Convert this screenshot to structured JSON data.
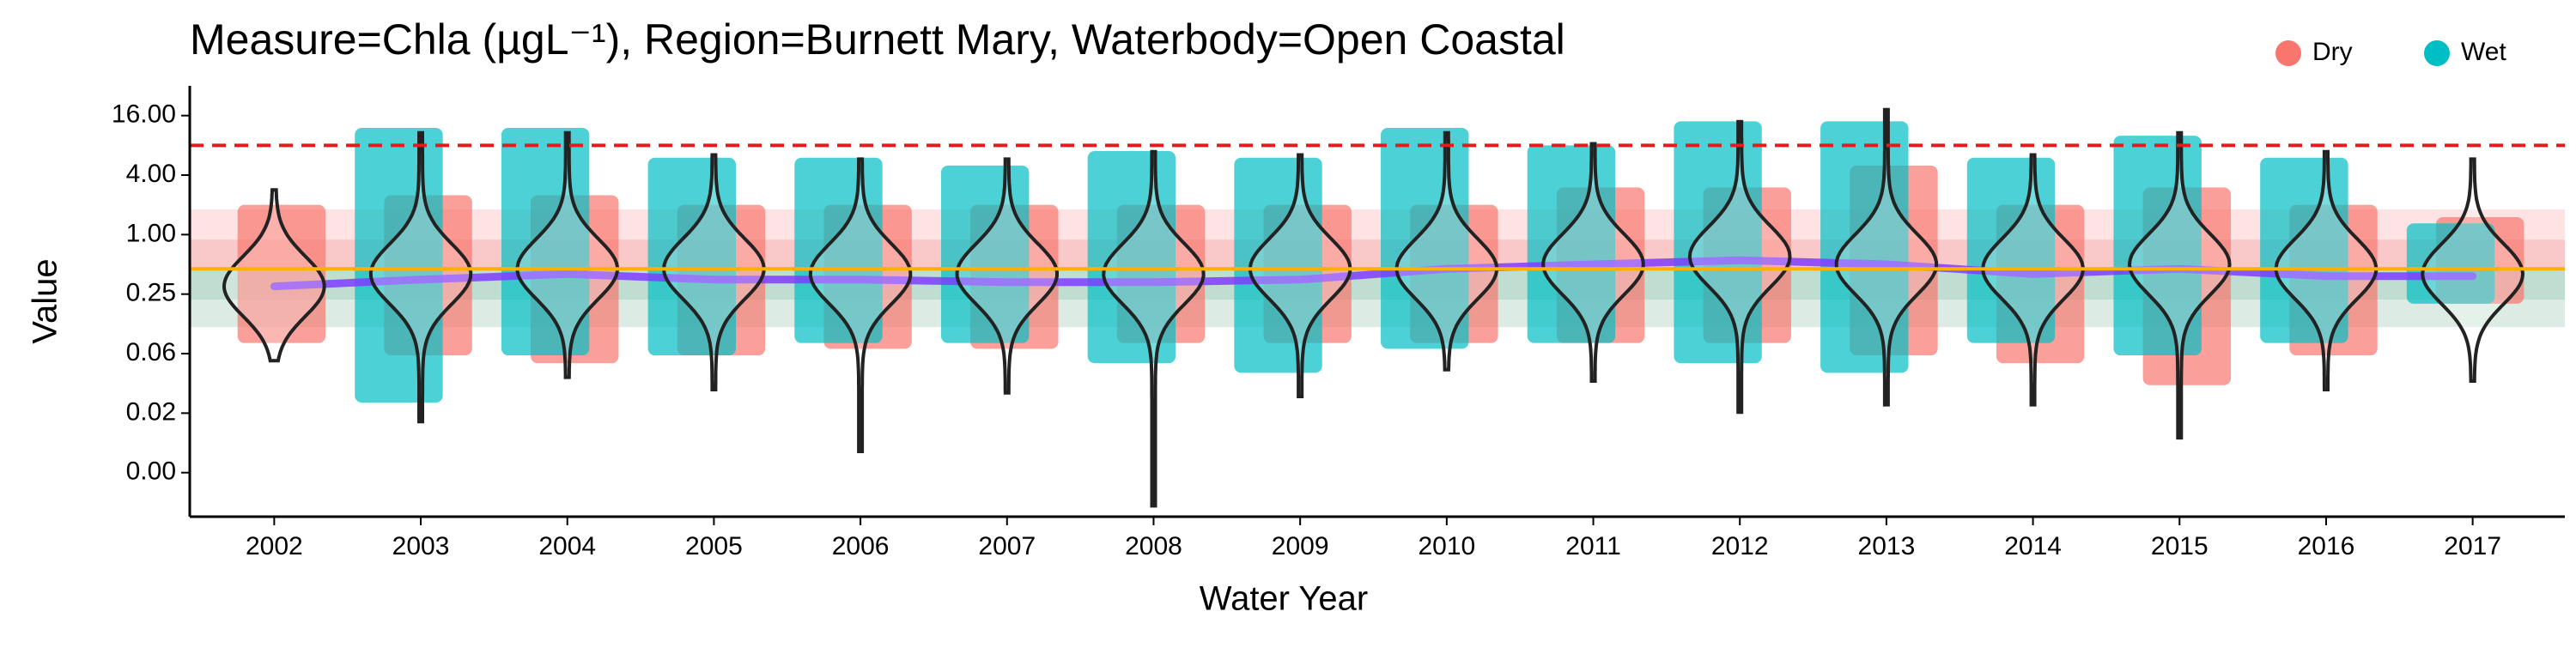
{
  "chart_data": {
    "type": "violin-strip",
    "title": "Measure=Chla (µgL⁻¹), Region=Burnett Mary, Waterbody=Open Coastal",
    "x_label": "Water Year",
    "y_label": "Value",
    "categories": [
      "2002",
      "2003",
      "2004",
      "2005",
      "2006",
      "2007",
      "2008",
      "2009",
      "2010",
      "2011",
      "2012",
      "2013",
      "2014",
      "2015",
      "2016",
      "2017"
    ],
    "ylog": true,
    "ylim": [
      0.0014,
      32
    ],
    "yticks": [
      {
        "value": 0.00390625,
        "label": "0.00"
      },
      {
        "value": 0.015625,
        "label": "0.02"
      },
      {
        "value": 0.0625,
        "label": "0.06"
      },
      {
        "value": 0.25,
        "label": "0.25"
      },
      {
        "value": 1,
        "label": "1.00"
      },
      {
        "value": 4,
        "label": "4.00"
      },
      {
        "value": 16,
        "label": "16.00"
      }
    ],
    "bands": [
      {
        "lo": 0.45,
        "hi": 1.8,
        "color": "#fde3e3"
      },
      {
        "lo": 0.45,
        "hi": 0.89,
        "color": "#f9c9c9"
      },
      {
        "lo": 0.116,
        "hi": 0.45,
        "color": "#dcece5"
      },
      {
        "lo": 0.22,
        "hi": 0.45,
        "color": "#bfddd0"
      }
    ],
    "reference_lines": [
      {
        "value": 8,
        "color": "#e41a1c",
        "dashed": true
      },
      {
        "value": 0.45,
        "color": "#ffb000",
        "dashed": false
      }
    ],
    "series": [
      {
        "name": "Dry",
        "color": "#F8766D",
        "low": [
          0.08,
          0.06,
          0.05,
          0.06,
          0.07,
          0.07,
          0.08,
          0.08,
          0.08,
          0.08,
          0.08,
          0.06,
          0.05,
          0.03,
          0.06,
          0.2
        ],
        "high": [
          2,
          2.5,
          2.5,
          2,
          2,
          2,
          2,
          2,
          2,
          3,
          3,
          5,
          2,
          3,
          2,
          1.5
        ]
      },
      {
        "name": "Wet",
        "color": "#00BFC4",
        "low": [
          null,
          0.02,
          0.06,
          0.06,
          0.08,
          0.08,
          0.05,
          0.04,
          0.07,
          0.08,
          0.05,
          0.04,
          0.08,
          0.06,
          0.08,
          0.2
        ],
        "high": [
          null,
          12,
          12,
          6,
          6,
          5,
          7,
          6,
          12,
          8,
          14,
          14,
          6,
          10,
          6,
          1.3
        ]
      }
    ],
    "violins": {
      "min": [
        0.053,
        0.0128,
        0.036,
        0.027,
        0.0064,
        0.025,
        0.0018,
        0.023,
        0.043,
        0.033,
        0.016,
        0.019,
        0.019,
        0.0088,
        0.027,
        0.033
      ],
      "median": [
        0.3,
        0.4,
        0.45,
        0.45,
        0.4,
        0.4,
        0.4,
        0.45,
        0.45,
        0.5,
        0.6,
        0.5,
        0.45,
        0.5,
        0.45,
        0.4
      ],
      "max": [
        2.83,
        10.7,
        10.7,
        6.4,
        5.8,
        5.8,
        6.9,
        6.4,
        10.7,
        8.3,
        13.9,
        18.4,
        6.4,
        10.7,
        6.9,
        5.8
      ]
    },
    "trend": {
      "color": "#7f3cff",
      "values": [
        0.3,
        0.35,
        0.4,
        0.35,
        0.35,
        0.33,
        0.33,
        0.35,
        0.45,
        0.5,
        0.55,
        0.5,
        0.4,
        0.45,
        0.38,
        0.38
      ]
    }
  }
}
